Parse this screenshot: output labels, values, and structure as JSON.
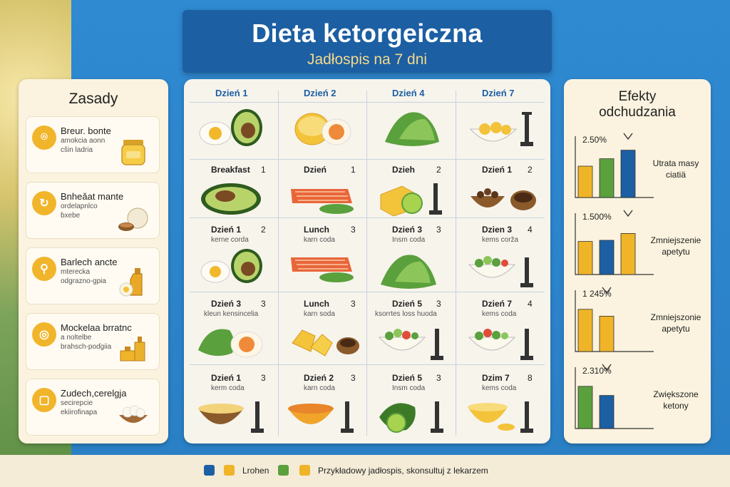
{
  "header": {
    "title": "Dieta ketorgeiczna",
    "subtitle": "Jadłospis na 7 dni"
  },
  "rules": {
    "title": "Zasady",
    "items": [
      {
        "badge": "⌾",
        "line1": "Breur. bonte",
        "line2": "amokcia aonn",
        "line3": "cšin ladria"
      },
      {
        "badge": "↻",
        "line1": "Bnheǎat mante",
        "line2": "ordelapnlco",
        "line3": "ɓxebe"
      },
      {
        "badge": "⚲",
        "line1": "Barlech ancte",
        "line2": "mterecka",
        "line3": "odgrazno-gpia"
      },
      {
        "badge": "◎",
        "line1": "Mockelaa brratnc",
        "line2": "a noltelbe",
        "line3": "brahsch-poɗgiia"
      },
      {
        "badge": "▢",
        "line1": "Zudech,cerelgja",
        "line2": "secirepcie",
        "line3": "ekiirofinapa"
      }
    ]
  },
  "grid": {
    "headers": [
      "Dzień 1",
      "Dzień 2",
      "Dzień 4",
      "Dzień 7"
    ],
    "rows": [
      [
        {
          "t": "",
          "n": "",
          "s": ""
        },
        {
          "t": "",
          "n": "",
          "s": ""
        },
        {
          "t": "",
          "n": "",
          "s": ""
        },
        {
          "t": "",
          "n": "",
          "s": ""
        }
      ],
      [
        {
          "t": "Breakfast",
          "n": "1",
          "s": ""
        },
        {
          "t": "Dzień",
          "n": "1",
          "s": ""
        },
        {
          "t": "Dzieh",
          "n": "2",
          "s": ""
        },
        {
          "t": "Dzień 1",
          "n": "2",
          "s": ""
        }
      ],
      [
        {
          "t": "Dzień 1",
          "n": "2",
          "s": "kerne corda"
        },
        {
          "t": "Lunch",
          "n": "3",
          "s": "karn coda"
        },
        {
          "t": "Dzień 3",
          "n": "3",
          "s": "Insm coda"
        },
        {
          "t": "Dzien 3",
          "n": "4",
          "s": "kems corža"
        }
      ],
      [
        {
          "t": "Dzień 3",
          "n": "3",
          "s": "kleun kensincelia"
        },
        {
          "t": "Lunch",
          "n": "3",
          "s": "karn soda"
        },
        {
          "t": "Dzień 5",
          "n": "3",
          "s": "ksorrtes loss huoda"
        },
        {
          "t": "Dzień 7",
          "n": "4",
          "s": "kems coda"
        }
      ],
      [
        {
          "t": "Dzień 1",
          "n": "3",
          "s": "kerm coda"
        },
        {
          "t": "Dzień 2",
          "n": "3",
          "s": "karn coda"
        },
        {
          "t": "Dzień 5",
          "n": "3",
          "s": "Insm coda"
        },
        {
          "t": "Dzim 7",
          "n": "8",
          "s": "kems coda"
        }
      ]
    ]
  },
  "effects": {
    "title1": "Efekty",
    "title2": "odchudzania",
    "charts": [
      {
        "pct": "2.50%",
        "label1": "Utrata masy",
        "label2": "ciatiä",
        "values": [
          0.55,
          0.68,
          0.83
        ],
        "colors": [
          "#f0b429",
          "#5aa03c",
          "#1c5fa3"
        ]
      },
      {
        "pct": "1.500%",
        "label1": "Zmniejszenie",
        "label2": "apetytu",
        "values": [
          0.58,
          0.6,
          0.72
        ],
        "colors": [
          "#f0b429",
          "#1c5fa3",
          "#f0b429"
        ]
      },
      {
        "pct": "1 245%",
        "label1": "Zmniejszonie",
        "label2": "apetytu",
        "values": [
          0.74,
          0.62
        ],
        "colors": [
          "#f0b429",
          "#f0b429"
        ]
      },
      {
        "pct": "2.310%",
        "label1": "Zwiększone",
        "label2": "ketony",
        "values": [
          0.74,
          0.58
        ],
        "colors": [
          "#5aa03c",
          "#1c5fa3"
        ]
      }
    ]
  },
  "footer": {
    "legend1": "Lrohen",
    "legend2": "Przykładowy jadłospis, skonsultuj z lekarzem",
    "colors": [
      "#1c5fa3",
      "#f0b429",
      "#5aa03c",
      "#f0b429"
    ]
  }
}
